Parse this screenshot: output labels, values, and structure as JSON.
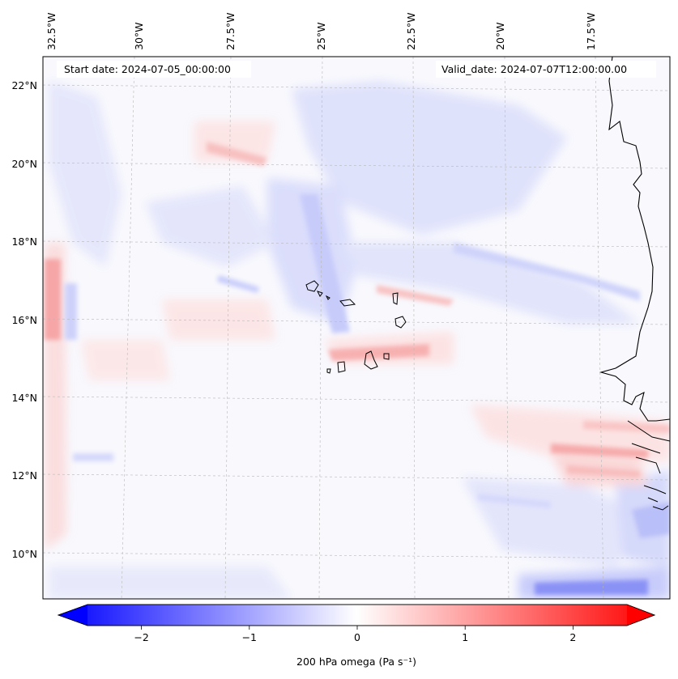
{
  "header": {
    "start_date": "Start date: 2024-07-05_00:00:00",
    "valid_date": "Valid_date: 2024-07-07T12:00:00.00"
  },
  "axes": {
    "lon_labels": [
      "32.5°W",
      "30°W",
      "27.5°W",
      "25°W",
      "22.5°W",
      "20°W",
      "17.5°W"
    ],
    "lat_labels": [
      "22°N",
      "20°N",
      "18°N",
      "16°N",
      "14°N",
      "12°N",
      "10°N"
    ]
  },
  "colorbar": {
    "ticks": [
      "−2",
      "−1",
      "0",
      "1",
      "2"
    ],
    "tick_values": [
      -2,
      -1,
      0,
      1,
      2
    ],
    "range": [
      -2.5,
      2.5
    ],
    "label": "200 hPa omega (Pa s⁻¹)",
    "colors": {
      "negative": "#0000ff",
      "zero": "#ffffff",
      "positive": "#ff0000"
    }
  },
  "map": {
    "field": "200 hPa omega",
    "colormap": "bwr",
    "gridlines": true,
    "coastline_color": "#000000"
  }
}
